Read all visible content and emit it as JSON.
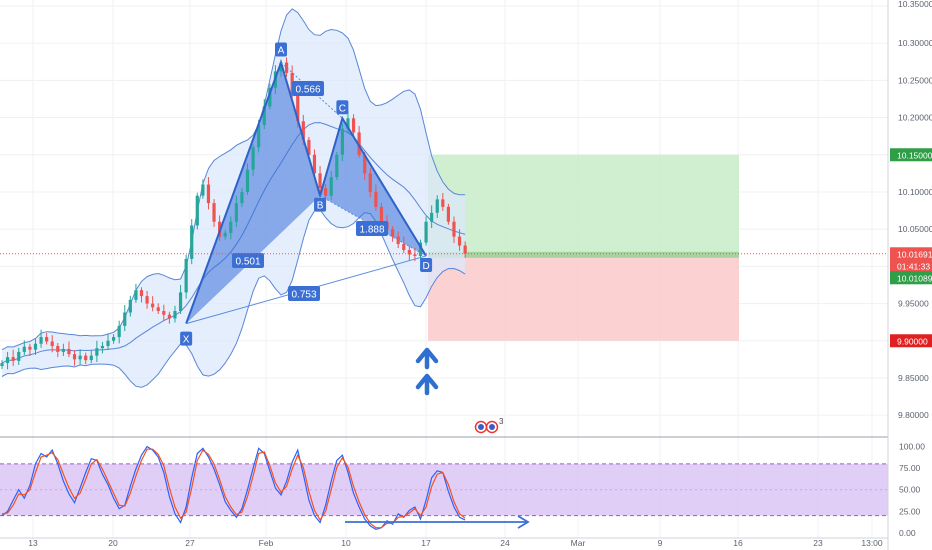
{
  "chart_data": [
    {
      "type": "candlestick",
      "title": "",
      "price_axis": {
        "ticks": [
          "10.35000",
          "10.30000",
          "10.25000",
          "10.20000",
          "10.15000",
          "10.10000",
          "10.05000",
          "10.00000",
          "9.95000",
          "9.90000",
          "9.85000",
          "9.80000"
        ],
        "tick_values": [
          10.35,
          10.3,
          10.25,
          10.2,
          10.15,
          10.1,
          10.05,
          10.0,
          9.95,
          9.9,
          9.85,
          9.8
        ],
        "range": [
          9.772,
          10.358
        ]
      },
      "time_axis": {
        "labels": [
          "13",
          "20",
          "27",
          "Feb",
          "10",
          "17",
          "24",
          "Mar",
          "9",
          "16",
          "23",
          "13:00"
        ]
      },
      "harmonic_pattern": {
        "points": [
          {
            "label": "X",
            "price": 9.923
          },
          {
            "label": "A",
            "price": 10.274
          },
          {
            "label": "B",
            "price": 10.095
          },
          {
            "label": "C",
            "price": 10.199
          },
          {
            "label": "D",
            "price": 10.014
          }
        ],
        "ratios": [
          "0.566",
          "0.501",
          "1.888",
          "0.753"
        ]
      },
      "position": {
        "take_profit": "10.15000",
        "entry": "10.01691",
        "stop_loss": "9.90000",
        "take_profit_value": 10.15,
        "entry_value": 10.0169,
        "stop_loss_value": 9.9
      },
      "price_labels": {
        "current": "10.01691",
        "countdown": "01:41:33",
        "bid": "10.01089"
      },
      "close_series": [
        9.87,
        9.878,
        9.873,
        9.885,
        9.892,
        9.888,
        9.896,
        9.905,
        9.899,
        9.893,
        9.885,
        9.889,
        9.882,
        9.875,
        9.88,
        9.874,
        9.88,
        9.89,
        9.893,
        9.9,
        9.905,
        9.92,
        9.938,
        9.955,
        9.968,
        9.96,
        9.95,
        9.945,
        9.94,
        9.935,
        9.93,
        9.94,
        9.965,
        10.01,
        10.055,
        10.095,
        10.11,
        10.085,
        10.06,
        10.04,
        10.045,
        10.06,
        10.085,
        10.1,
        10.13,
        10.16,
        10.19,
        10.215,
        10.24,
        10.262,
        10.274,
        10.26,
        10.23,
        10.195,
        10.17,
        10.15,
        10.125,
        10.105,
        10.095,
        10.12,
        10.15,
        10.185,
        10.199,
        10.18,
        10.15,
        10.125,
        10.1,
        10.08,
        10.06,
        10.05,
        10.04,
        10.03,
        10.022,
        10.016,
        10.014,
        10.032,
        10.06,
        10.072,
        10.09,
        10.08,
        10.06,
        10.04,
        10.028,
        10.017
      ]
    },
    {
      "type": "line",
      "title": "",
      "y_axis": {
        "ticks": [
          "100.00",
          "75.00",
          "50.00",
          "25.00",
          "0.00"
        ],
        "tick_values": [
          100,
          75,
          50,
          25,
          0
        ],
        "range": [
          -6,
          110
        ]
      },
      "band": [
        20,
        80
      ],
      "series": [
        {
          "color": "#2962ff",
          "values": [
            20,
            25,
            38,
            50,
            40,
            55,
            80,
            92,
            88,
            96,
            80,
            60,
            45,
            35,
            52,
            70,
            86,
            84,
            68,
            56,
            40,
            28,
            32,
            54,
            74,
            90,
            100,
            96,
            88,
            70,
            42,
            22,
            12,
            30,
            64,
            92,
            98,
            88,
            74,
            56,
            36,
            26,
            18,
            28,
            50,
            75,
            98,
            92,
            72,
            52,
            44,
            60,
            82,
            96,
            68,
            38,
            20,
            12,
            32,
            60,
            84,
            90,
            70,
            46,
            30,
            16,
            8,
            4,
            6,
            14,
            10,
            22,
            18,
            26,
            30,
            16,
            38,
            64,
            72,
            70,
            48,
            30,
            18,
            15
          ]
        },
        {
          "color": "#f4511e",
          "values": [
            22,
            23,
            32,
            45,
            44,
            50,
            70,
            88,
            90,
            93,
            85,
            68,
            52,
            40,
            46,
            62,
            80,
            85,
            74,
            60,
            46,
            32,
            31,
            46,
            66,
            84,
            97,
            97,
            91,
            78,
            52,
            30,
            17,
            24,
            52,
            84,
            96,
            91,
            80,
            62,
            42,
            30,
            21,
            24,
            42,
            66,
            92,
            94,
            78,
            58,
            47,
            54,
            74,
            90,
            76,
            48,
            26,
            15,
            25,
            50,
            76,
            87,
            76,
            54,
            36,
            21,
            11,
            6,
            6,
            11,
            11,
            18,
            19,
            23,
            28,
            20,
            30,
            54,
            68,
            70,
            56,
            36,
            22,
            17
          ]
        }
      ]
    }
  ],
  "markers": [
    {
      "icon": "arrow-up-icon"
    },
    {
      "icon": "arrow-up-icon"
    },
    {
      "icon": "news-event-icon",
      "count": "3"
    }
  ],
  "colors": {
    "up_candle": "#26a69a",
    "down_candle": "#ef5350",
    "pattern_fill": "#3a6fd8",
    "target_zone": "#c8ecc8",
    "stop_zone": "#fbc9c9",
    "band": "#dcc6f6",
    "arrow": "#2e6fd0"
  }
}
